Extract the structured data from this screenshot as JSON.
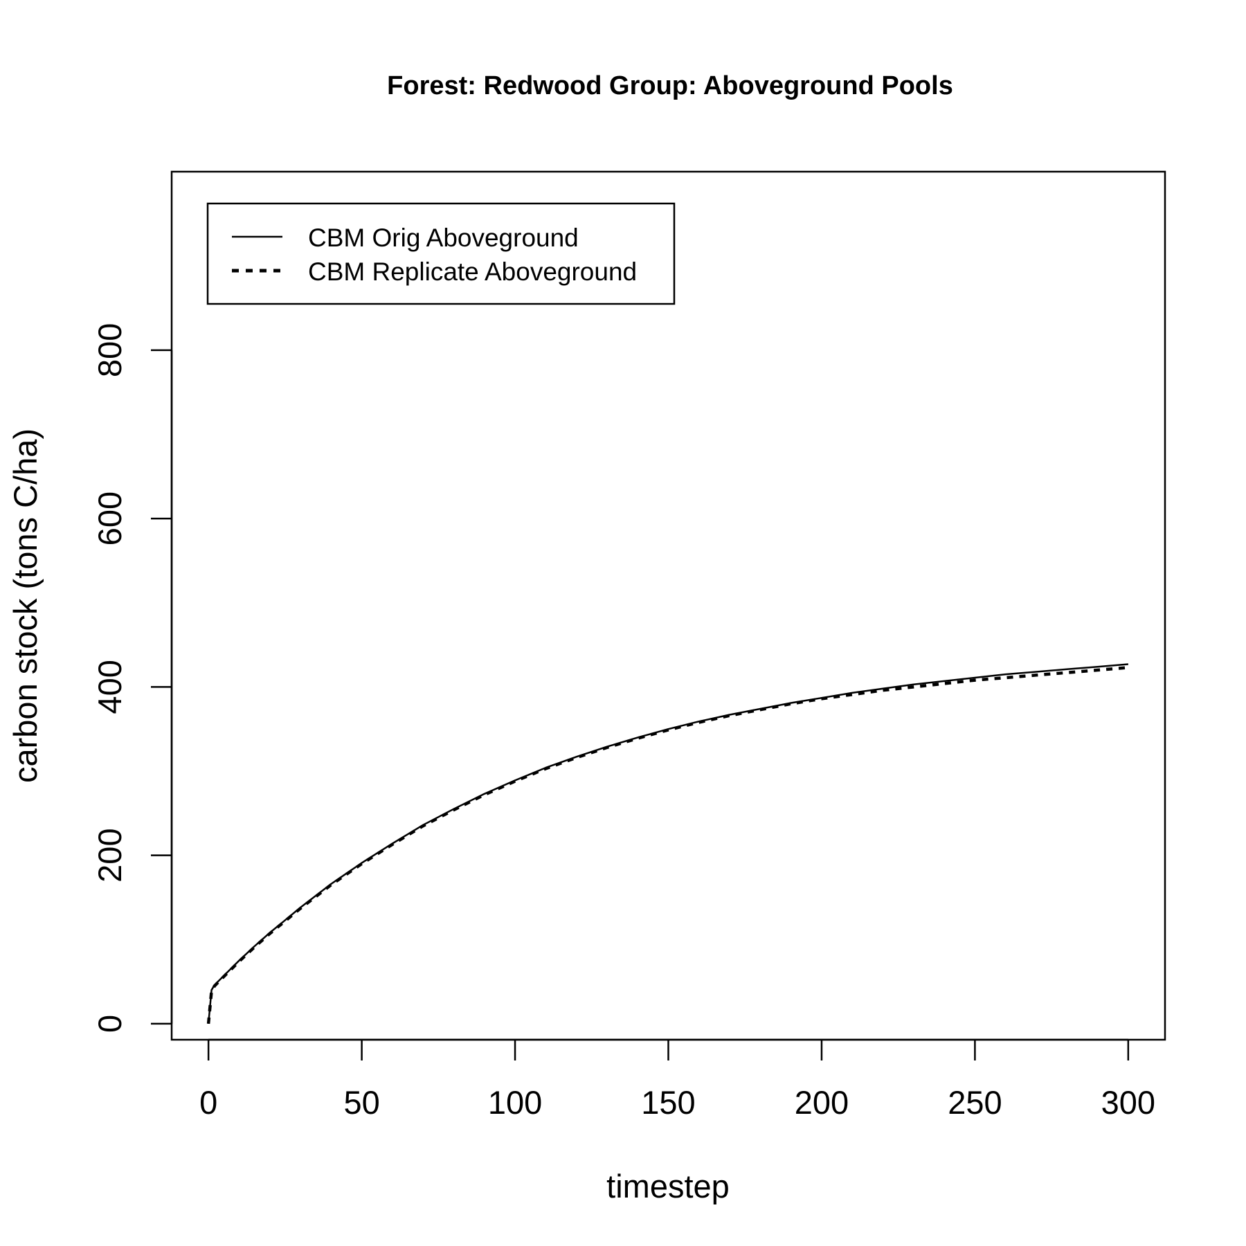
{
  "chart_data": {
    "type": "line",
    "title": "Forest: Redwood Group: Aboveground Pools",
    "xlabel": "timestep",
    "ylabel": "carbon stock (tons C/ha)",
    "xlim": [
      -12,
      312
    ],
    "ylim": [
      -19,
      1012
    ],
    "xticks": [
      0,
      50,
      100,
      150,
      200,
      250,
      300
    ],
    "yticks": [
      0,
      200,
      400,
      600,
      800
    ],
    "legend_position": "top-left",
    "series": [
      {
        "name": "CBM Orig Aboveground",
        "line_style": "solid",
        "x": [
          0,
          1,
          2,
          5,
          10,
          15,
          20,
          25,
          30,
          40,
          50,
          60,
          70,
          80,
          90,
          100,
          110,
          120,
          130,
          140,
          150,
          160,
          170,
          180,
          190,
          200,
          210,
          220,
          230,
          240,
          250,
          260,
          270,
          280,
          290,
          300
        ],
        "y": [
          0,
          40,
          46,
          57,
          75,
          92,
          108,
          123,
          138,
          166,
          191,
          214,
          236,
          255,
          273,
          289,
          304,
          317,
          329,
          340,
          350,
          359,
          367,
          374,
          381,
          387,
          393,
          398,
          403,
          407,
          411,
          415,
          418,
          421,
          424,
          427
        ]
      },
      {
        "name": "CBM Replicate Aboveground",
        "line_style": "dashed",
        "x": [
          0,
          1,
          2,
          5,
          10,
          15,
          20,
          25,
          30,
          40,
          50,
          60,
          70,
          80,
          90,
          100,
          110,
          120,
          130,
          140,
          150,
          160,
          170,
          180,
          190,
          200,
          210,
          220,
          230,
          240,
          250,
          260,
          270,
          280,
          290,
          300
        ],
        "y": [
          0,
          39,
          45,
          56,
          74,
          91,
          107,
          122,
          137,
          165,
          190,
          213,
          235,
          254,
          272,
          288,
          303,
          316,
          328,
          339,
          349,
          358,
          366,
          373,
          380,
          386,
          391,
          396,
          400,
          404,
          408,
          411,
          414,
          417,
          420,
          423
        ]
      }
    ]
  }
}
